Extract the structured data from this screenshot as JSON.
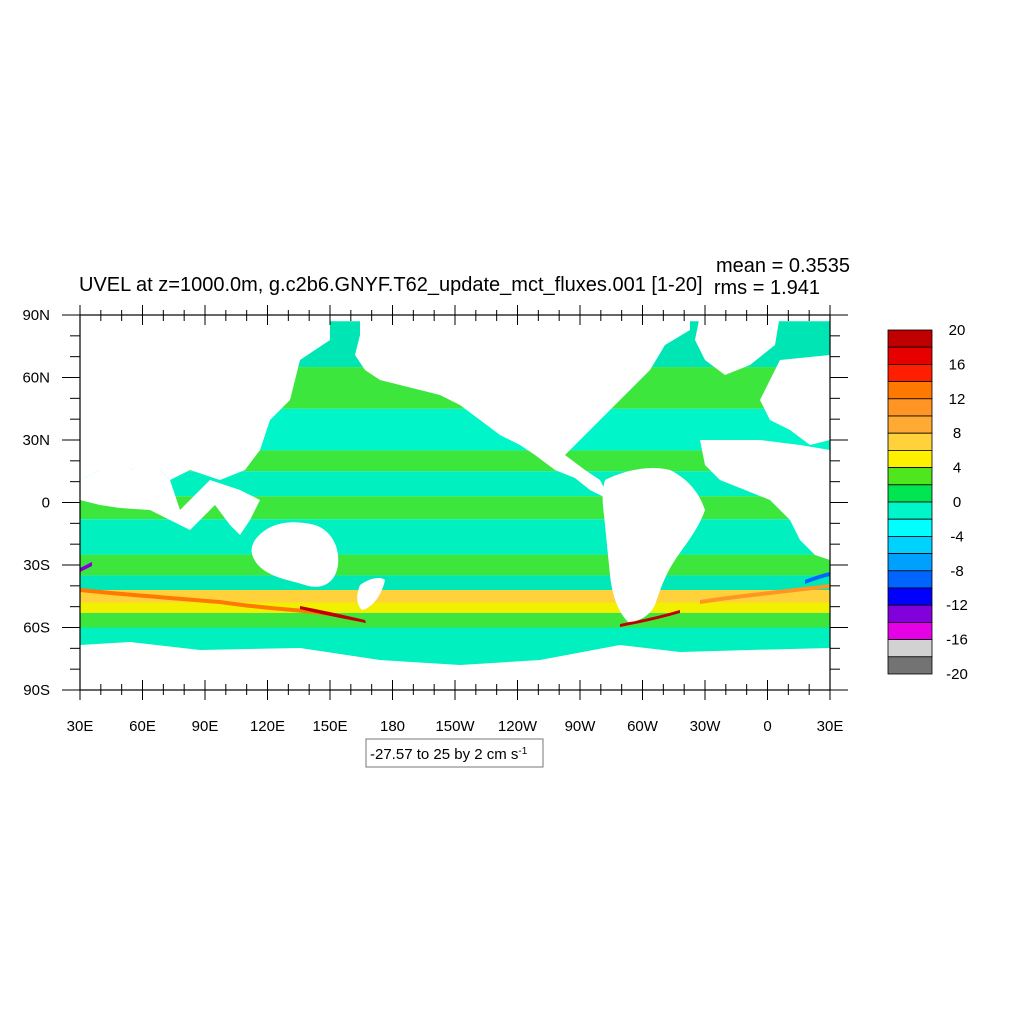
{
  "title": "UVEL at z=1000.0m, g.c2b6.GNYF.T62_update_mct_fluxes.001 [1-20]",
  "stats": {
    "mean_text": "mean = 0.3535",
    "rms_text": "rms = 1.941"
  },
  "contour_info": {
    "text": "-27.57 to 25 by 2 cm s",
    "unit_exponent": "-1"
  },
  "map": {
    "projection": "cylindrical-equidistant",
    "lon_range": [
      30,
      390
    ],
    "lat_range": [
      -90,
      90
    ],
    "x_tick_labels": [
      "30E",
      "60E",
      "90E",
      "120E",
      "150E",
      "180",
      "150W",
      "120W",
      "90W",
      "60W",
      "30W",
      "0",
      "30E"
    ],
    "y_tick_labels": [
      "90N",
      "60N",
      "30N",
      "0",
      "30S",
      "60S",
      "90S"
    ],
    "land_color": "#ffffff",
    "zones": [
      {
        "lat_top": 87,
        "lat_bottom": 65,
        "color": "#00e5b4"
      },
      {
        "lat_top": 65,
        "lat_bottom": 45,
        "color": "#3ce63c"
      },
      {
        "lat_top": 45,
        "lat_bottom": 25,
        "color": "#00f5c8"
      },
      {
        "lat_top": 25,
        "lat_bottom": 15,
        "color": "#3ce63c"
      },
      {
        "lat_top": 15,
        "lat_bottom": 3,
        "color": "#00f0c0"
      },
      {
        "lat_top": 3,
        "lat_bottom": -8,
        "color": "#3ce63c"
      },
      {
        "lat_top": -8,
        "lat_bottom": -25,
        "color": "#00f0c0"
      },
      {
        "lat_top": -25,
        "lat_bottom": -35,
        "color": "#3ce63c"
      },
      {
        "lat_top": -35,
        "lat_bottom": -42,
        "color": "#00e8b8"
      },
      {
        "lat_top": -42,
        "lat_bottom": -48,
        "color": "#ffd23c"
      },
      {
        "lat_top": -48,
        "lat_bottom": -53,
        "color": "#f0f000"
      },
      {
        "lat_top": -53,
        "lat_bottom": -60,
        "color": "#3ce63c"
      },
      {
        "lat_top": -60,
        "lat_bottom": -78,
        "color": "#00f0c0"
      }
    ]
  },
  "colorbar": {
    "labels": [
      "20",
      "16",
      "12",
      "8",
      "4",
      "0",
      "-4",
      "-8",
      "-12",
      "-16",
      "-20"
    ],
    "colors": [
      "#c00000",
      "#e60000",
      "#ff1e00",
      "#ff7800",
      "#ff9623",
      "#ffaa32",
      "#ffd23c",
      "#fff000",
      "#50e61e",
      "#00e650",
      "#00f5c8",
      "#00ffff",
      "#00d2ff",
      "#00a0ff",
      "#0064ff",
      "#0000ff",
      "#8200dc",
      "#e600e6",
      "#d2d2d2",
      "#737373"
    ]
  }
}
